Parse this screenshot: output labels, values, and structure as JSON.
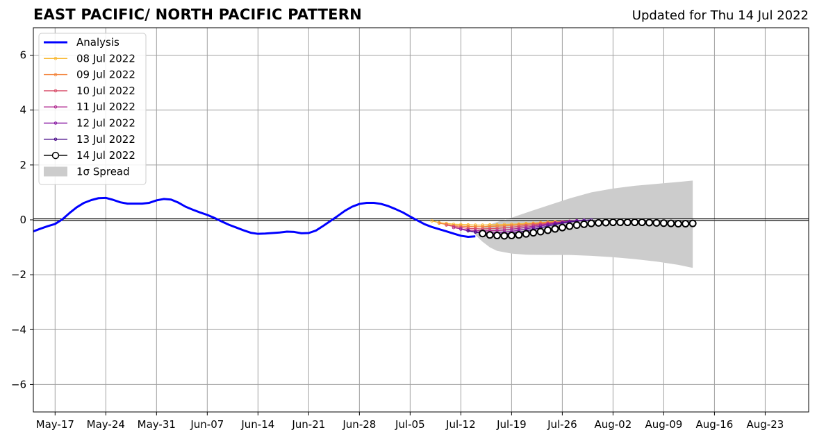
{
  "title": "EAST PACIFIC/ NORTH PACIFIC PATTERN",
  "subtitle": "Updated for Thu 14 Jul 2022",
  "chart_data": {
    "type": "line",
    "title": "EAST PACIFIC/ NORTH PACIFIC PATTERN",
    "subtitle": "Updated for Thu 14 Jul 2022",
    "x_axis": {
      "type": "date",
      "range": [
        "2022-05-14",
        "2022-08-29"
      ],
      "tick_dates": [
        "2022-05-17",
        "2022-05-24",
        "2022-05-31",
        "2022-06-07",
        "2022-06-14",
        "2022-06-21",
        "2022-06-28",
        "2022-07-05",
        "2022-07-12",
        "2022-07-19",
        "2022-07-26",
        "2022-08-02",
        "2022-08-09",
        "2022-08-16",
        "2022-08-23"
      ],
      "tick_labels": [
        "May-17",
        "May-24",
        "May-31",
        "Jun-07",
        "Jun-14",
        "Jun-21",
        "Jun-28",
        "Jul-05",
        "Jul-12",
        "Jul-19",
        "Jul-26",
        "Aug-02",
        "Aug-09",
        "Aug-16",
        "Aug-23"
      ]
    },
    "y_axis": {
      "range": [
        -7,
        7
      ],
      "ticks": [
        -6,
        -4,
        -2,
        0,
        2,
        4,
        6
      ],
      "tick_labels": [
        "−6",
        "−4",
        "−2",
        "0",
        "2",
        "4",
        "6"
      ]
    },
    "grid": true,
    "zero_line": true,
    "legend_position": "upper-left",
    "legend": [
      "Analysis",
      "08 Jul 2022",
      "09 Jul 2022",
      "10 Jul 2022",
      "11 Jul 2022",
      "12 Jul 2022",
      "13 Jul 2022",
      "14 Jul 2022",
      "1σ Spread"
    ],
    "series": [
      {
        "name": "Analysis",
        "color": "#0000ff",
        "style": "analysis",
        "x": [
          "2022-05-14",
          "2022-05-15",
          "2022-05-16",
          "2022-05-17",
          "2022-05-18",
          "2022-05-19",
          "2022-05-20",
          "2022-05-21",
          "2022-05-22",
          "2022-05-23",
          "2022-05-24",
          "2022-05-25",
          "2022-05-26",
          "2022-05-27",
          "2022-05-28",
          "2022-05-29",
          "2022-05-30",
          "2022-05-31",
          "2022-06-01",
          "2022-06-02",
          "2022-06-03",
          "2022-06-04",
          "2022-06-05",
          "2022-06-06",
          "2022-06-07",
          "2022-06-08",
          "2022-06-09",
          "2022-06-10",
          "2022-06-11",
          "2022-06-12",
          "2022-06-13",
          "2022-06-14",
          "2022-06-15",
          "2022-06-16",
          "2022-06-17",
          "2022-06-18",
          "2022-06-19",
          "2022-06-20",
          "2022-06-21",
          "2022-06-22",
          "2022-06-23",
          "2022-06-24",
          "2022-06-25",
          "2022-06-26",
          "2022-06-27",
          "2022-06-28",
          "2022-06-29",
          "2022-06-30",
          "2022-07-01",
          "2022-07-02",
          "2022-07-03",
          "2022-07-04",
          "2022-07-05",
          "2022-07-06",
          "2022-07-07",
          "2022-07-08",
          "2022-07-09",
          "2022-07-10",
          "2022-07-11",
          "2022-07-12",
          "2022-07-13",
          "2022-07-14"
        ],
        "y": [
          -0.42,
          -0.32,
          -0.23,
          -0.15,
          0.02,
          0.25,
          0.46,
          0.62,
          0.72,
          0.79,
          0.8,
          0.73,
          0.64,
          0.59,
          0.59,
          0.59,
          0.62,
          0.71,
          0.76,
          0.74,
          0.63,
          0.48,
          0.37,
          0.27,
          0.18,
          0.07,
          -0.06,
          -0.18,
          -0.28,
          -0.38,
          -0.47,
          -0.51,
          -0.5,
          -0.48,
          -0.46,
          -0.43,
          -0.44,
          -0.49,
          -0.48,
          -0.39,
          -0.22,
          -0.04,
          0.14,
          0.33,
          0.48,
          0.58,
          0.62,
          0.62,
          0.58,
          0.5,
          0.39,
          0.27,
          0.12,
          -0.02,
          -0.16,
          -0.26,
          -0.34,
          -0.42,
          -0.5,
          -0.58,
          -0.62,
          -0.6
        ]
      },
      {
        "name": "08 Jul 2022",
        "color": "#f9b932",
        "style": "small-marker",
        "x": [
          "2022-07-08",
          "2022-07-09",
          "2022-07-10",
          "2022-07-11",
          "2022-07-12",
          "2022-07-13",
          "2022-07-14",
          "2022-07-15",
          "2022-07-16",
          "2022-07-17",
          "2022-07-18",
          "2022-07-19",
          "2022-07-20",
          "2022-07-21",
          "2022-07-22",
          "2022-07-23",
          "2022-07-24",
          "2022-07-25"
        ],
        "y": [
          -0.04,
          -0.1,
          -0.13,
          -0.16,
          -0.17,
          -0.18,
          -0.19,
          -0.19,
          -0.18,
          -0.18,
          -0.17,
          -0.16,
          -0.15,
          -0.13,
          -0.12,
          -0.1,
          -0.08,
          -0.06
        ]
      },
      {
        "name": "09 Jul 2022",
        "color": "#f3843c",
        "style": "small-marker",
        "x": [
          "2022-07-09",
          "2022-07-10",
          "2022-07-11",
          "2022-07-12",
          "2022-07-13",
          "2022-07-14",
          "2022-07-15",
          "2022-07-16",
          "2022-07-17",
          "2022-07-18",
          "2022-07-19",
          "2022-07-20",
          "2022-07-21",
          "2022-07-22",
          "2022-07-23",
          "2022-07-24",
          "2022-07-25",
          "2022-07-26"
        ],
        "y": [
          -0.12,
          -0.17,
          -0.21,
          -0.23,
          -0.24,
          -0.25,
          -0.25,
          -0.24,
          -0.23,
          -0.22,
          -0.2,
          -0.18,
          -0.16,
          -0.14,
          -0.12,
          -0.1,
          -0.08,
          -0.06
        ]
      },
      {
        "name": "10 Jul 2022",
        "color": "#d94f6b",
        "style": "small-marker",
        "x": [
          "2022-07-10",
          "2022-07-11",
          "2022-07-12",
          "2022-07-13",
          "2022-07-14",
          "2022-07-15",
          "2022-07-16",
          "2022-07-17",
          "2022-07-18",
          "2022-07-19",
          "2022-07-20",
          "2022-07-21",
          "2022-07-22",
          "2022-07-23",
          "2022-07-24",
          "2022-07-25",
          "2022-07-26",
          "2022-07-27"
        ],
        "y": [
          -0.19,
          -0.24,
          -0.28,
          -0.31,
          -0.32,
          -0.33,
          -0.32,
          -0.31,
          -0.29,
          -0.27,
          -0.24,
          -0.21,
          -0.18,
          -0.15,
          -0.12,
          -0.1,
          -0.07,
          -0.05
        ]
      },
      {
        "name": "11 Jul 2022",
        "color": "#b12a90",
        "style": "small-marker",
        "x": [
          "2022-07-11",
          "2022-07-12",
          "2022-07-13",
          "2022-07-14",
          "2022-07-15",
          "2022-07-16",
          "2022-07-17",
          "2022-07-18",
          "2022-07-19",
          "2022-07-20",
          "2022-07-21",
          "2022-07-22",
          "2022-07-23",
          "2022-07-24",
          "2022-07-25",
          "2022-07-26",
          "2022-07-27",
          "2022-07-28"
        ],
        "y": [
          -0.28,
          -0.33,
          -0.37,
          -0.39,
          -0.4,
          -0.4,
          -0.39,
          -0.37,
          -0.34,
          -0.31,
          -0.27,
          -0.23,
          -0.19,
          -0.15,
          -0.11,
          -0.08,
          -0.05,
          -0.03
        ]
      },
      {
        "name": "12 Jul 2022",
        "color": "#8a1fa5",
        "style": "small-marker",
        "x": [
          "2022-07-12",
          "2022-07-13",
          "2022-07-14",
          "2022-07-15",
          "2022-07-16",
          "2022-07-17",
          "2022-07-18",
          "2022-07-19",
          "2022-07-20",
          "2022-07-21",
          "2022-07-22",
          "2022-07-23",
          "2022-07-24",
          "2022-07-25",
          "2022-07-26",
          "2022-07-27",
          "2022-07-28",
          "2022-07-29"
        ],
        "y": [
          -0.34,
          -0.4,
          -0.44,
          -0.46,
          -0.47,
          -0.47,
          -0.45,
          -0.42,
          -0.38,
          -0.33,
          -0.28,
          -0.23,
          -0.18,
          -0.13,
          -0.09,
          -0.06,
          -0.03,
          -0.01
        ]
      },
      {
        "name": "13 Jul 2022",
        "color": "#4a0c8a",
        "style": "small-marker",
        "x": [
          "2022-07-13",
          "2022-07-14",
          "2022-07-15",
          "2022-07-16",
          "2022-07-17",
          "2022-07-18",
          "2022-07-19",
          "2022-07-20",
          "2022-07-21",
          "2022-07-22",
          "2022-07-23",
          "2022-07-24",
          "2022-07-25",
          "2022-07-26",
          "2022-07-27",
          "2022-07-28",
          "2022-07-29",
          "2022-07-30"
        ],
        "y": [
          -0.4,
          -0.45,
          -0.49,
          -0.51,
          -0.52,
          -0.51,
          -0.49,
          -0.45,
          -0.4,
          -0.35,
          -0.29,
          -0.23,
          -0.17,
          -0.12,
          -0.08,
          -0.05,
          -0.02,
          0.0
        ]
      },
      {
        "name": "14 Jul 2022",
        "color": "#000000",
        "style": "open-circle",
        "x": [
          "2022-07-15",
          "2022-07-16",
          "2022-07-17",
          "2022-07-18",
          "2022-07-19",
          "2022-07-20",
          "2022-07-21",
          "2022-07-22",
          "2022-07-23",
          "2022-07-24",
          "2022-07-25",
          "2022-07-26",
          "2022-07-27",
          "2022-07-28",
          "2022-07-29",
          "2022-07-30",
          "2022-07-31",
          "2022-08-01",
          "2022-08-02",
          "2022-08-03",
          "2022-08-04",
          "2022-08-05",
          "2022-08-06",
          "2022-08-07",
          "2022-08-08",
          "2022-08-09",
          "2022-08-10",
          "2022-08-11",
          "2022-08-12",
          "2022-08-13"
        ],
        "y": [
          -0.5,
          -0.55,
          -0.57,
          -0.58,
          -0.57,
          -0.55,
          -0.51,
          -0.47,
          -0.43,
          -0.38,
          -0.33,
          -0.28,
          -0.23,
          -0.19,
          -0.16,
          -0.13,
          -0.11,
          -0.1,
          -0.09,
          -0.09,
          -0.09,
          -0.09,
          -0.09,
          -0.1,
          -0.11,
          -0.12,
          -0.13,
          -0.14,
          -0.14,
          -0.13
        ]
      }
    ],
    "spread": {
      "name": "1σ Spread",
      "color": "#cccccc",
      "x": [
        "2022-07-14",
        "2022-07-15",
        "2022-07-16",
        "2022-07-17",
        "2022-07-19",
        "2022-07-21",
        "2022-07-24",
        "2022-07-27",
        "2022-07-30",
        "2022-08-02",
        "2022-08-05",
        "2022-08-08",
        "2022-08-11",
        "2022-08-13"
      ],
      "upper": [
        -0.4,
        -0.28,
        -0.17,
        -0.08,
        0.08,
        0.26,
        0.52,
        0.78,
        1.0,
        1.14,
        1.24,
        1.31,
        1.38,
        1.43
      ],
      "lower": [
        -0.55,
        -0.8,
        -1.0,
        -1.13,
        -1.23,
        -1.27,
        -1.28,
        -1.28,
        -1.31,
        -1.36,
        -1.43,
        -1.52,
        -1.64,
        -1.75
      ]
    }
  }
}
